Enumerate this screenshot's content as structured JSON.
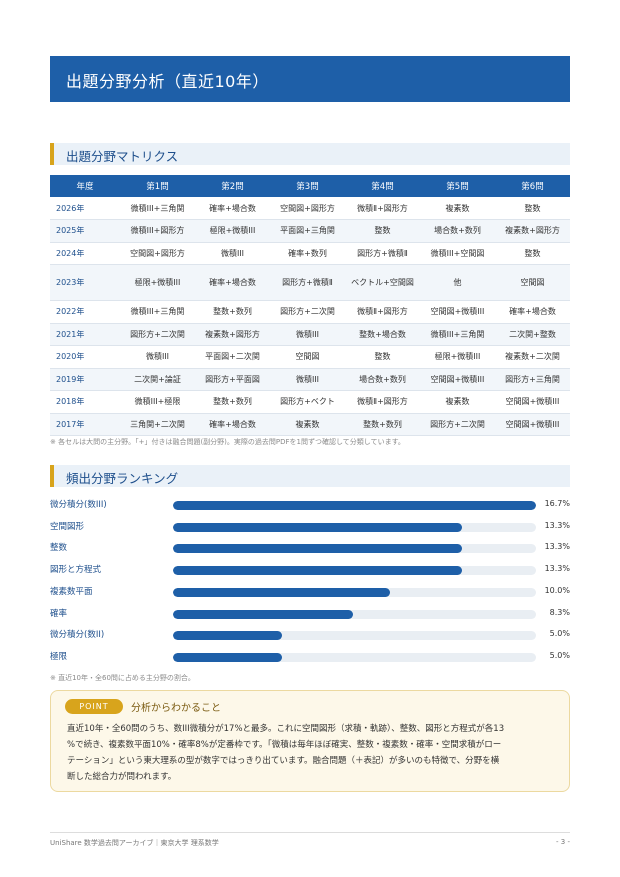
{
  "header": {
    "title": "出題分野分析（直近10年）"
  },
  "matrix_section": {
    "title": "出題分野マトリクス"
  },
  "matrix": {
    "headers": [
      "年度",
      "第1問",
      "第2問",
      "第3問",
      "第4問",
      "第5問",
      "第6問"
    ],
    "rows": [
      [
        "2026年",
        "微積III+三角関",
        "確率+場合数",
        "空間図+図形方",
        "微積Ⅱ+図形方",
        "複素数",
        "整数"
      ],
      [
        "2025年",
        "微積III+図形方",
        "極限+微積III",
        "平面図+三角関",
        "整数",
        "場合数+数列",
        "複素数+図形方"
      ],
      [
        "2024年",
        "空間図+図形方",
        "微積III",
        "確率+数列",
        "図形方+微積Ⅱ",
        "微積III+空間図",
        "整数"
      ],
      [
        "2023年",
        "極限+微積III",
        "確率+場合数",
        "図形方+微積Ⅱ",
        "ベクトル+空間図",
        "他",
        "空間図"
      ],
      [
        "2022年",
        "微積III+三角関",
        "整数+数列",
        "図形方+二次関",
        "微積Ⅱ+図形方",
        "空間図+微積III",
        "確率+場合数"
      ],
      [
        "2021年",
        "図形方+二次関",
        "複素数+図形方",
        "微積III",
        "整数+場合数",
        "微積III+三角関",
        "二次関+整数"
      ],
      [
        "2020年",
        "微積III",
        "平面図+二次関",
        "空間図",
        "整数",
        "極限+微積III",
        "複素数+二次関"
      ],
      [
        "2019年",
        "二次関+論証",
        "図形方+平面図",
        "微積III",
        "場合数+数列",
        "空間図+微積III",
        "図形方+三角関"
      ],
      [
        "2018年",
        "微積III+極限",
        "整数+数列",
        "図形方+ベクト",
        "微積Ⅱ+図形方",
        "複素数",
        "空間図+微積III"
      ],
      [
        "2017年",
        "三角関+二次関",
        "確率+場合数",
        "複素数",
        "整数+数列",
        "図形方+二次関",
        "空間図+微積III"
      ]
    ]
  },
  "matrix_note": "※ 各セルは大問の主分野。「+」付きは融合問題(副分野)。実際の過去問PDFを1問ずつ確認して分類しています。",
  "ranking_section": {
    "title": "頻出分野ランキング"
  },
  "ranking": [
    {
      "label": "微分積分(数III)",
      "percent": 16.7,
      "value_text": "16.7%"
    },
    {
      "label": "空間図形",
      "percent": 13.3,
      "value_text": "13.3%"
    },
    {
      "label": "整数",
      "percent": 13.3,
      "value_text": "13.3%"
    },
    {
      "label": "図形と方程式",
      "percent": 13.3,
      "value_text": "13.3%"
    },
    {
      "label": "複素数平面",
      "percent": 10.0,
      "value_text": "10.0%"
    },
    {
      "label": "確率",
      "percent": 8.3,
      "value_text": "8.3%"
    },
    {
      "label": "微分積分(数II)",
      "percent": 5.0,
      "value_text": "5.0%"
    },
    {
      "label": "極限",
      "percent": 5.0,
      "value_text": "5.0%"
    }
  ],
  "ranking_max_percent": 16.7,
  "ranking_note": "※ 直近10年・全60問に占める主分野の割合。",
  "point": {
    "badge": "POINT",
    "title": "分析からわかること",
    "lines": [
      "直近10年・全60問のうち、数III微積分が17%と最多。これに空間図形（求積・軌跡）、整数、図形と方程式が各13",
      "%で続き、複素数平面10%・確率8%が定番枠です。「微積は毎年ほぼ確実、整数・複素数・確率・空間求積がロー",
      "テーション」という東大理系の型が数字ではっきり出ています。融合問題（＋表記）が多いのも特徴で、分野を横",
      "断した総合力が問われます。"
    ]
  },
  "footer": {
    "left": "UniShare 数学過去問アーカイブ｜東京大学 理系数学",
    "right": "- 3 -"
  },
  "colors": {
    "primary": "#1e5fa8",
    "accent": "#d8a41c",
    "track": "#e9eef3"
  }
}
